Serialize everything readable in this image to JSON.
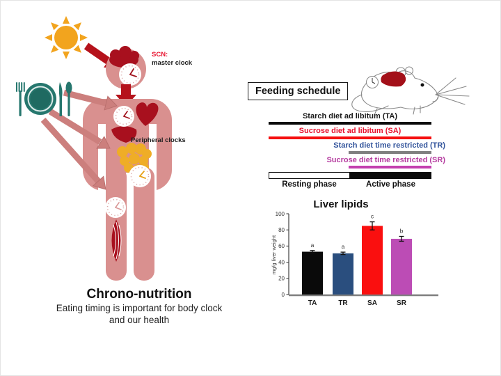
{
  "left_panel": {
    "scn_label": "SCN:",
    "scn_sublabel": "master clock",
    "peripheral_label": "Peripheral clocks",
    "title": "Chrono-nutrition",
    "subtitle_line1": "Eating timing is important for body clock",
    "subtitle_line2": "and our health",
    "colors": {
      "body_pink": "#d9908f",
      "organ_dark_red": "#a8101e",
      "arrow_dark_red": "#b5121b",
      "food_arrow_pink": "#cc7f7d",
      "sun_orange": "#f2a41e",
      "plate_teal": "#26776e",
      "intestine_gold": "#efad27"
    }
  },
  "feeding_schedule": {
    "box_label": "Feeding schedule",
    "rows": [
      {
        "label": "Starch diet ad libitum (TA)",
        "text_color": "#1a1a1a",
        "bar_color": "#0a0a0a",
        "start": 0,
        "end": 1,
        "align": "center"
      },
      {
        "label": "Sucrose diet ad libitum (SA)",
        "text_color": "#e8112d",
        "bar_color": "#f50f0f",
        "start": 0,
        "end": 1,
        "align": "center"
      },
      {
        "label": "Starch diet time restricted (TR)",
        "text_color": "#31539b",
        "bar_color": "#7f7f7f",
        "start": 0.49,
        "end": 1,
        "align": "right"
      },
      {
        "label": "Sucrose diet time restricted (SR)",
        "text_color": "#b4399e",
        "bar_color": "#c33faf",
        "start": 0.49,
        "end": 1,
        "align": "right"
      }
    ],
    "phases": [
      {
        "label": "Resting phase",
        "fill": "white"
      },
      {
        "label": "Active phase",
        "fill": "black"
      }
    ]
  },
  "chart_data": {
    "type": "bar",
    "title": "Liver lipids",
    "xlabel": "",
    "ylabel": "mg/g liver weight",
    "ylim": [
      0,
      100
    ],
    "yticks": [
      0,
      20,
      40,
      60,
      80,
      100
    ],
    "categories": [
      "TA",
      "TR",
      "SA",
      "SR"
    ],
    "values": [
      53,
      51,
      85,
      69
    ],
    "errors": [
      1.5,
      1.5,
      5,
      3
    ],
    "sig_letters": [
      "a",
      "a",
      "c",
      "b"
    ],
    "bar_colors": [
      "#0a0a0a",
      "#2a4e7e",
      "#fa0f0f",
      "#bc4cb5"
    ],
    "grid": false,
    "legend": false
  }
}
